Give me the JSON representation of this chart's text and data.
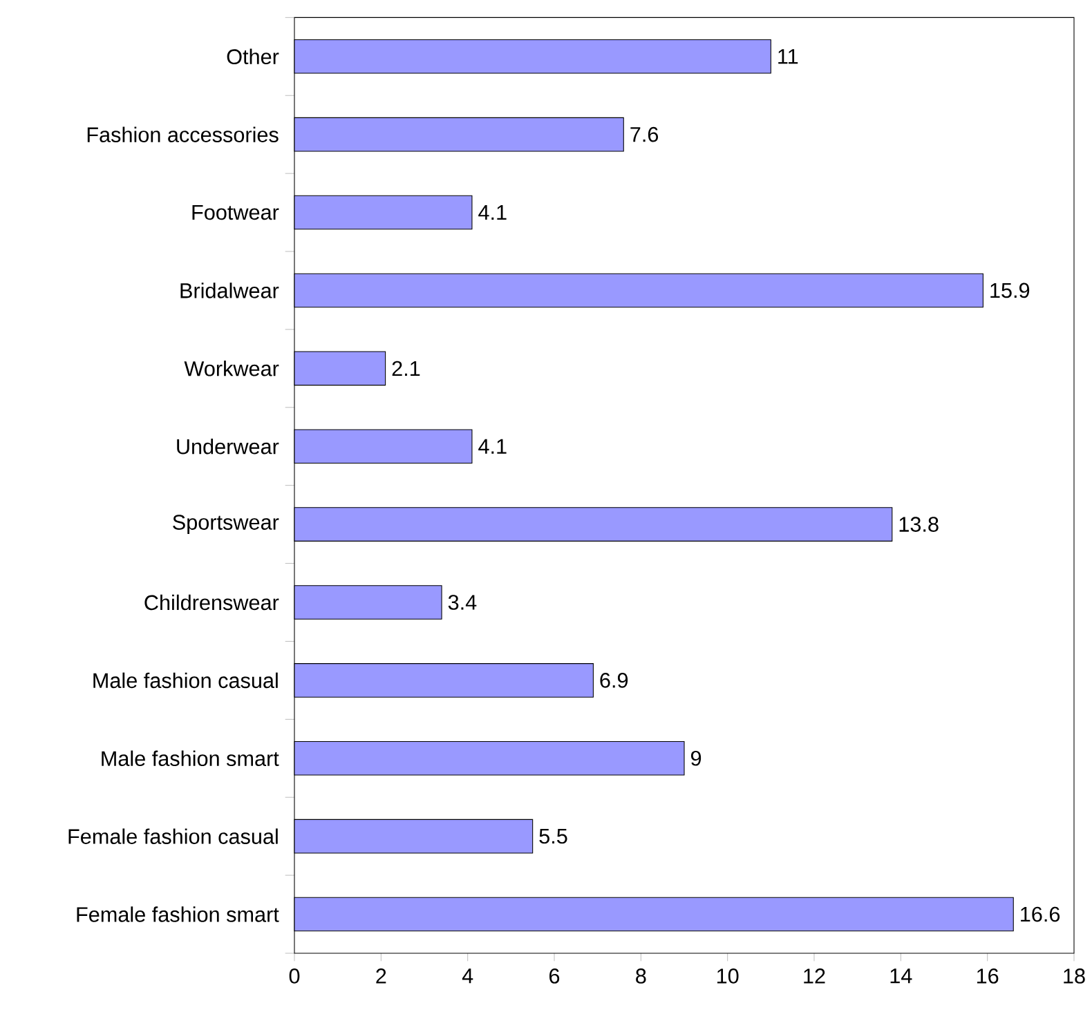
{
  "chart_data": {
    "type": "bar",
    "orientation": "horizontal",
    "categories": [
      "Other",
      "Fashion accessories",
      "Footwear",
      "Bridalwear",
      "Workwear",
      "Underwear",
      "Sportswear",
      "Childrenswear",
      "Male fashion casual",
      "Male fashion smart",
      "Female fashion casual",
      "Female fashion smart"
    ],
    "values": [
      11,
      7.6,
      4.1,
      15.9,
      2.1,
      4.1,
      13.8,
      3.4,
      6.9,
      9,
      5.5,
      16.6
    ],
    "color": "#9999ff",
    "xlim": [
      0,
      18
    ],
    "xticks": [
      0,
      2,
      4,
      6,
      8,
      10,
      12,
      14,
      16,
      18
    ],
    "data_labels": true
  }
}
